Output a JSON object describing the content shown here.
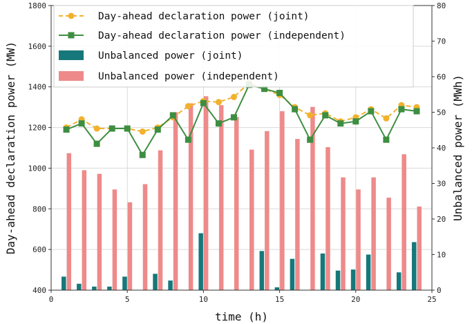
{
  "chart_data": {
    "type": "bar+line",
    "title": "",
    "xlabel": "time (h)",
    "ylabel_left": "Day-ahead declaration power (MW)",
    "ylabel_right": "Unbalanced power (MWh)",
    "xlim": [
      0,
      25
    ],
    "ylim_left": [
      400,
      1800
    ],
    "ylim_right": [
      0,
      80
    ],
    "grid": true,
    "legend_position": "top-left",
    "x": [
      1,
      2,
      3,
      4,
      5,
      6,
      7,
      8,
      9,
      10,
      11,
      12,
      13,
      14,
      15,
      16,
      17,
      18,
      19,
      20,
      21,
      22,
      23,
      24
    ],
    "x_ticks": [
      "0",
      "5",
      "10",
      "15",
      "20",
      "25"
    ],
    "y_left_ticks": [
      "400",
      "600",
      "800",
      "1000",
      "1200",
      "1400",
      "1600",
      "1800"
    ],
    "y_right_ticks": [
      "0",
      "10",
      "20",
      "30",
      "40",
      "50",
      "60",
      "70",
      "80"
    ],
    "lines": [
      {
        "name": "Day-ahead declaration power (joint)",
        "axis": "left",
        "color": "#f2b12c",
        "style": "dashed",
        "marker": "circle",
        "values": [
          1200,
          1240,
          1195,
          1195,
          1195,
          1180,
          1200,
          1250,
          1305,
          1330,
          1325,
          1350,
          1420,
          1390,
          1360,
          1300,
          1260,
          1270,
          1230,
          1250,
          1290,
          1245,
          1310,
          1300
        ]
      },
      {
        "name": "Day-ahead declaration power (independent)",
        "axis": "left",
        "color": "#3e8e41",
        "style": "solid",
        "marker": "square",
        "values": [
          1190,
          1220,
          1120,
          1195,
          1195,
          1065,
          1190,
          1260,
          1140,
          1320,
          1220,
          1250,
          1410,
          1390,
          1370,
          1290,
          1140,
          1260,
          1220,
          1230,
          1280,
          1140,
          1290,
          1280
        ]
      }
    ],
    "series": [
      {
        "name": "Unbalanced power (joint)",
        "axis": "right",
        "color": "#16787a",
        "values": [
          3.8,
          1.8,
          1.0,
          1.0,
          3.8,
          0,
          4.6,
          2.7,
          0,
          16,
          0,
          0,
          0,
          11,
          0.8,
          8.8,
          0,
          10.3,
          5.5,
          5.8,
          10,
          0,
          5,
          13.5
        ]
      },
      {
        "name": "Unbalanced power (independent)",
        "axis": "right",
        "color": "#ee8a8a",
        "values": [
          38.5,
          33.7,
          32.7,
          28.3,
          24.7,
          29.8,
          39.3,
          50,
          52.5,
          54.5,
          52,
          48.7,
          39.5,
          44.7,
          50.3,
          42.5,
          51.5,
          40.2,
          31.7,
          28.3,
          31.7,
          26,
          38.2,
          23.5
        ]
      }
    ]
  }
}
